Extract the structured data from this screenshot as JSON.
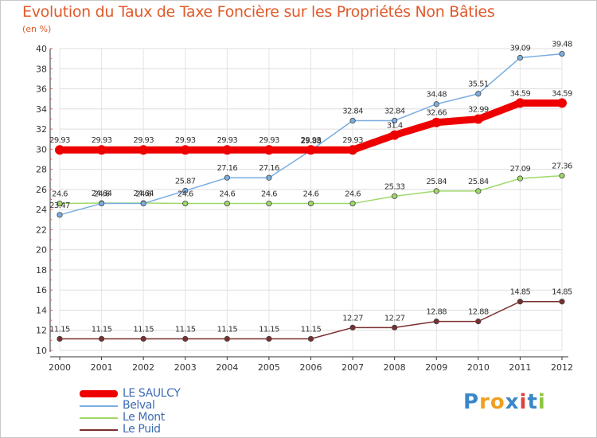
{
  "header": {
    "title": "Evolution du Taux de Taxe Foncière sur les Propriétés Non Bâties",
    "subtitle": "(en %)"
  },
  "logo": {
    "text": "Proxiti",
    "letters": [
      "P",
      "r",
      "o",
      "x",
      "i",
      "t",
      "i"
    ],
    "colors": [
      "#3a87c8",
      "#f0a020",
      "#f0a020",
      "#3a87c8",
      "#e04040",
      "#3a87c8",
      "#8cc63f"
    ]
  },
  "chart_data": {
    "type": "line",
    "title": "Evolution du Taux de Taxe Foncière sur les Propriétés Non Bâties",
    "subtitle": "(en %)",
    "x": [
      2000,
      2001,
      2002,
      2003,
      2004,
      2005,
      2006,
      2007,
      2008,
      2009,
      2010,
      2011,
      2012
    ],
    "ylim": [
      10,
      40
    ],
    "yticks": [
      10,
      12,
      14,
      16,
      18,
      20,
      22,
      24,
      26,
      28,
      30,
      32,
      34,
      36,
      38,
      40
    ],
    "grid": true,
    "legend_position": "bottom-left",
    "series": [
      {
        "name": "Le Puid",
        "color": "#7a2f2f",
        "values": [
          11.15,
          11.15,
          11.15,
          11.15,
          11.15,
          11.15,
          11.15,
          12.27,
          12.27,
          12.88,
          12.88,
          14.85,
          14.85
        ],
        "labels": [
          "11.15",
          "11.15",
          "11.15",
          "11.15",
          "11.15",
          "11.15",
          "11.15",
          "12.27",
          "12.27",
          "12.88",
          "12.88",
          "14.85",
          "14.85"
        ]
      },
      {
        "name": "Le Mont",
        "color": "#9fd86a",
        "values": [
          24.6,
          24.64,
          24.64,
          24.6,
          24.6,
          24.6,
          24.6,
          24.6,
          25.33,
          25.84,
          25.84,
          27.09,
          27.36
        ],
        "labels": [
          "24.6",
          "24.64",
          "24.64",
          "24.6",
          "24.6",
          "24.6",
          "24.6",
          "24.6",
          "25.33",
          "25.84",
          "25.84",
          "27.09",
          "27.36"
        ]
      },
      {
        "name": "Belval",
        "color": "#7aaee0",
        "values": [
          23.47,
          24.6,
          24.6,
          25.87,
          27.16,
          27.16,
          29.88,
          32.84,
          32.84,
          34.48,
          35.51,
          39.09,
          39.48
        ],
        "labels": [
          "23.47",
          "24.6",
          "24.6",
          "25.87",
          "27.16",
          "27.16",
          "29.88",
          "32.84",
          "32.84",
          "34.48",
          "35.51",
          "39.09",
          "39.48"
        ]
      },
      {
        "name": "LE SAULCY",
        "color": "#ee0000",
        "values": [
          29.93,
          29.93,
          29.93,
          29.93,
          29.93,
          29.93,
          29.93,
          29.93,
          31.4,
          32.66,
          32.99,
          34.59,
          34.59
        ],
        "labels": [
          "29.93",
          "29.93",
          "29.93",
          "29.93",
          "29.93",
          "29.93",
          "29.93",
          "29.93",
          "31.4",
          "32.66",
          "32.99",
          "34.59",
          "34.59"
        ]
      }
    ],
    "legend": [
      "LE SAULCY",
      "Belval",
      "Le Mont",
      "Le Puid"
    ]
  }
}
